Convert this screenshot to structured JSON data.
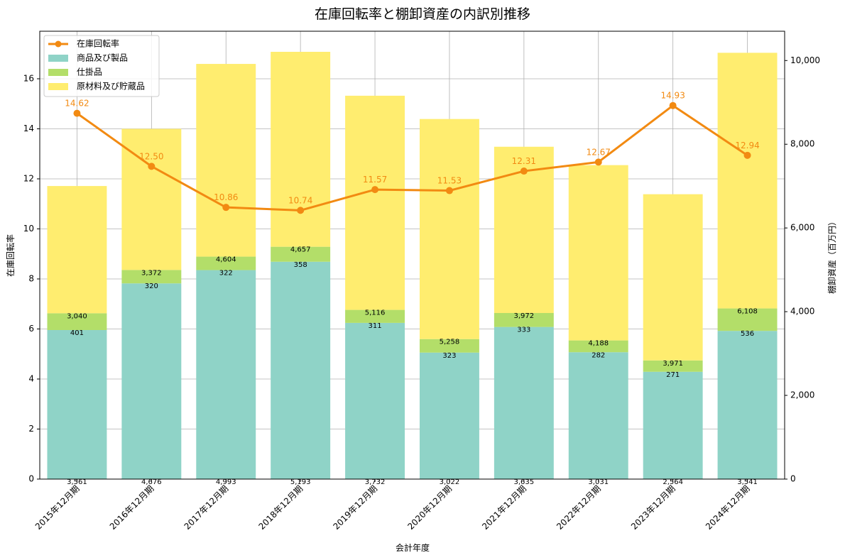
{
  "chart_data": {
    "type": "bar",
    "title": "在庫回転率と棚卸資産の内訳別推移",
    "xlabel": "会計年度",
    "ylabel_left": "在庫回転率",
    "ylabel_right": "棚卸資産（百万円）",
    "categories": [
      "2015年12月期",
      "2016年12月期",
      "2017年12月期",
      "2018年12月期",
      "2019年12月期",
      "2020年12月期",
      "2021年12月期",
      "2022年12月期",
      "2023年12月期",
      "2024年12月期"
    ],
    "series": [
      {
        "name": "商品及び製品",
        "kind": "bar",
        "axis": "right",
        "color": "#8fd3c7",
        "values": [
          3561,
          4676,
          4993,
          5193,
          3732,
          3022,
          3635,
          3031,
          2564,
          3541
        ],
        "labels": [
          "3,561",
          "4,676",
          "4,993",
          "5,193",
          "3,732",
          "3,022",
          "3,635",
          "3,031",
          "2,564",
          "3,541"
        ]
      },
      {
        "name": "仕掛品",
        "kind": "bar",
        "axis": "right",
        "color": "#b3de69",
        "values": [
          401,
          320,
          322,
          358,
          311,
          323,
          333,
          282,
          271,
          536
        ],
        "labels": [
          "401",
          "320",
          "322",
          "358",
          "311",
          "323",
          "333",
          "282",
          "271",
          "536"
        ]
      },
      {
        "name": "原材料及び貯蔵品",
        "kind": "bar",
        "axis": "right",
        "color": "#ffed6f",
        "values": [
          3040,
          3372,
          4604,
          4657,
          5116,
          5258,
          3972,
          4188,
          3971,
          6108
        ],
        "labels": [
          "3,040",
          "3,372",
          "4,604",
          "4,657",
          "5,116",
          "5,258",
          "3,972",
          "4,188",
          "3,971",
          "6,108"
        ]
      },
      {
        "name": "在庫回転率",
        "kind": "line",
        "axis": "left",
        "color": "#f28a12",
        "values": [
          14.62,
          12.5,
          10.86,
          10.74,
          11.57,
          11.53,
          12.31,
          12.67,
          14.93,
          12.94
        ],
        "labels": [
          "14.62",
          "12.50",
          "10.86",
          "10.74",
          "11.57",
          "11.53",
          "12.31",
          "12.67",
          "14.93",
          "12.94"
        ]
      }
    ],
    "yticks_left": [
      "0",
      "2",
      "4",
      "6",
      "8",
      "10",
      "12",
      "14",
      "16"
    ],
    "yticks_right": [
      "0",
      "2,000",
      "4,000",
      "6,000",
      "8,000",
      "10,000"
    ],
    "ylim_left": [
      0,
      17.9
    ],
    "ylim_right": [
      0,
      10700
    ],
    "grid": true,
    "legend": "top-left"
  }
}
